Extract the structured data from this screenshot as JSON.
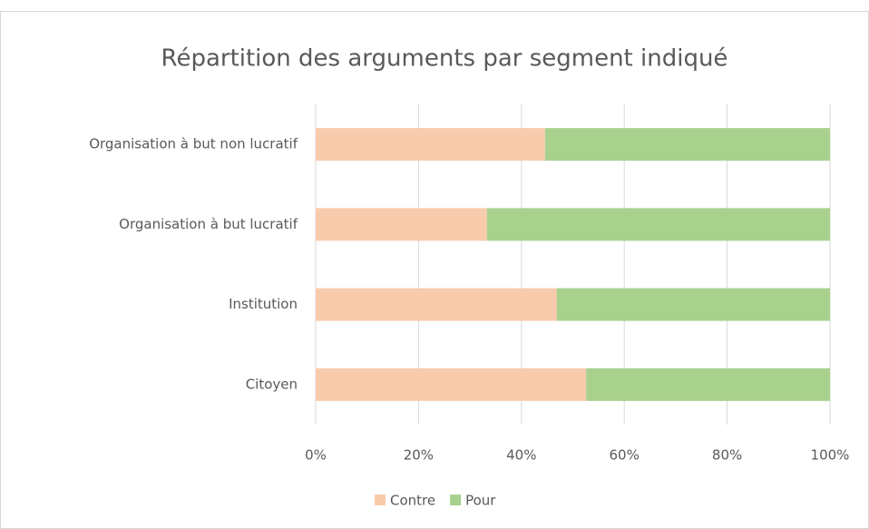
{
  "chart_data": {
    "type": "stacked_barh",
    "title": "Répartition des arguments par segment indiqué",
    "categories": [
      "Organisation à but non lucratif",
      "Organisation à but lucratif",
      "Institution",
      "Citoyen"
    ],
    "series": [
      {
        "name": "Contre",
        "color": "#f8cbad",
        "values": [
          44.6,
          33.3,
          46.9,
          52.6
        ]
      },
      {
        "name": "Pour",
        "color": "#a9d18e",
        "values": [
          55.4,
          66.7,
          53.1,
          47.4
        ]
      }
    ],
    "xlim": [
      0,
      100
    ],
    "xticks": [
      {
        "value": 0,
        "label": "0%"
      },
      {
        "value": 20,
        "label": "20%"
      },
      {
        "value": 40,
        "label": "40%"
      },
      {
        "value": 60,
        "label": "60%"
      },
      {
        "value": 80,
        "label": "80%"
      },
      {
        "value": 100,
        "label": "100%"
      }
    ],
    "grid": true,
    "legend": "bottom"
  }
}
